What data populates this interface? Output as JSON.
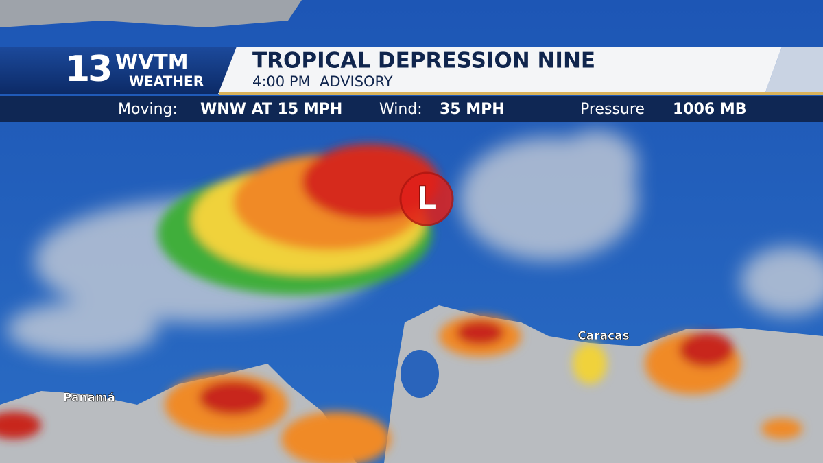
{
  "logo": {
    "number": "13",
    "call_sign": "WVTM",
    "brand": "WEATHER"
  },
  "header": {
    "title": "TROPICAL DEPRESSION NINE",
    "subtitle": "4:00 PM  ADVISORY"
  },
  "info_bar": {
    "moving_label": "Moving:",
    "moving_value": "WNW AT 15 MPH",
    "wind_label": "Wind:",
    "wind_value": "35 MPH",
    "pressure_label": "Pressure",
    "pressure_value": "1006 MB"
  },
  "map": {
    "storm_marker": "L",
    "places": [
      "Panamá",
      "Caracas"
    ]
  }
}
